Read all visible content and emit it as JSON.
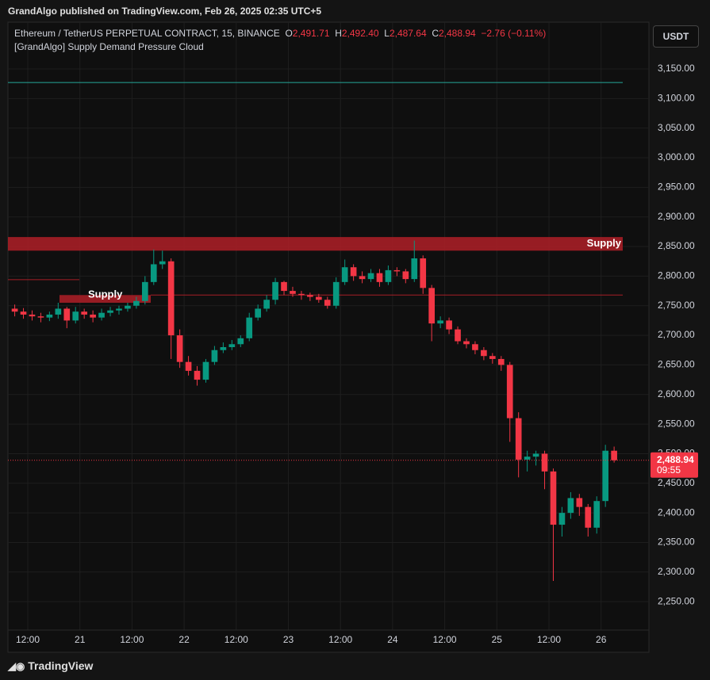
{
  "header": {
    "published": "GrandAlgo published on TradingView.com, Feb 26, 2025 02:35 UTC+5",
    "brand": "TradingView"
  },
  "chart_data": {
    "type": "candlestick",
    "symbol": "Ethereum / TetherUS PERPETUAL CONTRACT, 15, BINANCE",
    "legend": {
      "o_label": "O",
      "open": "2,491.71",
      "h_label": "H",
      "high": "2,492.40",
      "l_label": "L",
      "low": "2,487.64",
      "c_label": "C",
      "close": "2,488.94",
      "change": "−2.76 (−0.11%)"
    },
    "indicator": "[GrandAlgo] Supply Demand Pressure Cloud",
    "currency": "USDT",
    "up_color": "#089981",
    "down_color": "#f23645",
    "grid": true,
    "categories": [
      null,
      null,
      "12:00",
      null,
      null,
      null,
      null,
      null,
      "21",
      null,
      null,
      null,
      null,
      null,
      "12:00",
      null,
      null,
      null,
      null,
      null,
      "22",
      null,
      null,
      null,
      null,
      null,
      "12:00",
      null,
      null,
      null,
      null,
      null,
      "23",
      null,
      null,
      null,
      null,
      null,
      "12:00",
      null,
      null,
      null,
      null,
      null,
      "24",
      null,
      null,
      null,
      null,
      null,
      "12:00",
      null,
      null,
      null,
      null,
      null,
      "25",
      null,
      null,
      null,
      null,
      null,
      "12:00",
      null,
      null,
      null,
      null,
      null,
      "26",
      null
    ],
    "open": [
      2745,
      2740,
      2735,
      2732,
      2730,
      2735,
      2745,
      2725,
      2740,
      2735,
      2730,
      2738,
      2742,
      2745,
      2750,
      2758,
      2790,
      2820,
      2825,
      2700,
      2655,
      2640,
      2625,
      2655,
      2675,
      2680,
      2685,
      2695,
      2730,
      2745,
      2760,
      2790,
      2775,
      2770,
      2768,
      2765,
      2760,
      2750,
      2790,
      2815,
      2800,
      2795,
      2805,
      2790,
      2810,
      2808,
      2795,
      2830,
      2780,
      2720,
      2725,
      2710,
      2690,
      2685,
      2675,
      2665,
      2660,
      2650,
      2560,
      2490,
      2495,
      2500,
      2470,
      2380,
      2400,
      2425,
      2410,
      2375,
      2420,
      2505
    ],
    "high": [
      2752,
      2746,
      2742,
      2738,
      2740,
      2755,
      2748,
      2748,
      2745,
      2742,
      2745,
      2748,
      2750,
      2755,
      2765,
      2800,
      2845,
      2843,
      2830,
      2710,
      2665,
      2648,
      2660,
      2682,
      2688,
      2692,
      2700,
      2738,
      2752,
      2768,
      2797,
      2792,
      2782,
      2775,
      2772,
      2770,
      2765,
      2798,
      2828,
      2820,
      2808,
      2812,
      2812,
      2818,
      2815,
      2812,
      2860,
      2835,
      2785,
      2732,
      2730,
      2715,
      2695,
      2690,
      2680,
      2670,
      2665,
      2655,
      2570,
      2505,
      2505,
      2505,
      2475,
      2410,
      2435,
      2432,
      2415,
      2428,
      2515,
      2512
    ],
    "low": [
      2732,
      2728,
      2725,
      2722,
      2724,
      2728,
      2712,
      2720,
      2728,
      2722,
      2725,
      2732,
      2735,
      2740,
      2745,
      2752,
      2785,
      2812,
      2660,
      2645,
      2632,
      2615,
      2620,
      2650,
      2670,
      2675,
      2680,
      2690,
      2725,
      2740,
      2752,
      2768,
      2765,
      2760,
      2758,
      2755,
      2745,
      2745,
      2785,
      2792,
      2788,
      2790,
      2782,
      2785,
      2800,
      2788,
      2790,
      2770,
      2690,
      2712,
      2702,
      2685,
      2678,
      2668,
      2658,
      2652,
      2640,
      2520,
      2460,
      2470,
      2480,
      2440,
      2285,
      2360,
      2390,
      2395,
      2360,
      2365,
      2410,
      2485
    ],
    "close": [
      2740,
      2735,
      2732,
      2730,
      2735,
      2745,
      2725,
      2740,
      2735,
      2730,
      2738,
      2742,
      2745,
      2750,
      2758,
      2790,
      2820,
      2825,
      2700,
      2655,
      2640,
      2625,
      2655,
      2675,
      2680,
      2685,
      2695,
      2730,
      2745,
      2760,
      2790,
      2775,
      2770,
      2768,
      2765,
      2760,
      2750,
      2790,
      2815,
      2800,
      2795,
      2805,
      2790,
      2810,
      2808,
      2795,
      2830,
      2780,
      2720,
      2725,
      2710,
      2690,
      2685,
      2675,
      2665,
      2660,
      2650,
      2560,
      2490,
      2495,
      2500,
      2470,
      2380,
      2400,
      2425,
      2410,
      2375,
      2420,
      2505,
      2489
    ],
    "zones": [
      {
        "label": "Supply",
        "top": 2866,
        "bottom": 2843,
        "color": "#a61e26"
      },
      {
        "label": "Supply",
        "top": 2768,
        "bottom": 2755,
        "color": "#a61e26"
      }
    ],
    "levels": [
      {
        "value": 3127,
        "color": "#26a69a"
      },
      {
        "value": 2768,
        "color": "#a61e26"
      },
      {
        "value": 2794,
        "color": "#a61e26"
      }
    ],
    "last_price": {
      "value": 2488.94,
      "label": "2,488.94",
      "countdown": "09:55",
      "color": "#f23645"
    },
    "ylim": [
      2202,
      3229
    ],
    "yticks": [
      {
        "value": 2250,
        "label": "2,250.00"
      },
      {
        "value": 2300,
        "label": "2,300.00"
      },
      {
        "value": 2350,
        "label": "2,350.00"
      },
      {
        "value": 2400,
        "label": "2,400.00"
      },
      {
        "value": 2450,
        "label": "2,450.00"
      },
      {
        "value": 2500,
        "label": "2,500.00"
      },
      {
        "value": 2550,
        "label": "2,550.00"
      },
      {
        "value": 2600,
        "label": "2,600.00"
      },
      {
        "value": 2650,
        "label": "2,650.00"
      },
      {
        "value": 2700,
        "label": "2,700.00"
      },
      {
        "value": 2750,
        "label": "2,750.00"
      },
      {
        "value": 2800,
        "label": "2,800.00"
      },
      {
        "value": 2850,
        "label": "2,850.00"
      },
      {
        "value": 2900,
        "label": "2,900.00"
      },
      {
        "value": 2950,
        "label": "2,950.00"
      },
      {
        "value": 3000,
        "label": "3,000.00"
      },
      {
        "value": 3050,
        "label": "3,050.00"
      },
      {
        "value": 3100,
        "label": "3,100.00"
      },
      {
        "value": 3150,
        "label": "3,150.00"
      }
    ]
  }
}
